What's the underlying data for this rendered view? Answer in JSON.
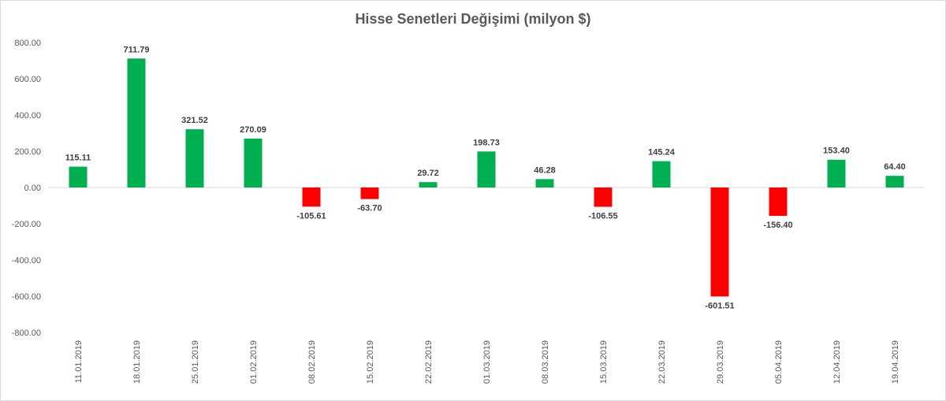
{
  "chart_data": {
    "type": "bar",
    "title": "Hisse Senetleri Değişimi (milyon $)",
    "xlabel": "",
    "ylabel": "",
    "ylim": [
      -800,
      800
    ],
    "yticks": [
      "800.00",
      "600.00",
      "400.00",
      "200.00",
      "0.00",
      "-200.00",
      "-400.00",
      "-600.00",
      "-800.00"
    ],
    "categories": [
      "11.01.2019",
      "18.01.2019",
      "25.01.2019",
      "01.02.2019",
      "08.02.2019",
      "15.02.2019",
      "22.02.2019",
      "01.03.2019",
      "08.03.2019",
      "15.03.2019",
      "22.03.2019",
      "29.03.2019",
      "05.04.2019",
      "12.04.2019",
      "19.04.2019"
    ],
    "values": [
      115.11,
      711.79,
      321.52,
      270.09,
      -105.61,
      -63.7,
      29.72,
      198.73,
      46.28,
      -106.55,
      145.24,
      -601.51,
      -156.4,
      153.4,
      64.4
    ],
    "value_labels": [
      "115.11",
      "711.79",
      "321.52",
      "270.09",
      "-105.61",
      "-63.70",
      "29.72",
      "198.73",
      "46.28",
      "-106.55",
      "145.24",
      "-601.51",
      "-156.40",
      "153.40",
      "64.40"
    ],
    "colors": {
      "positive": "#00b050",
      "negative": "#ff0000",
      "axis": "#d9d9d9"
    },
    "grid": false,
    "legend": "none"
  }
}
